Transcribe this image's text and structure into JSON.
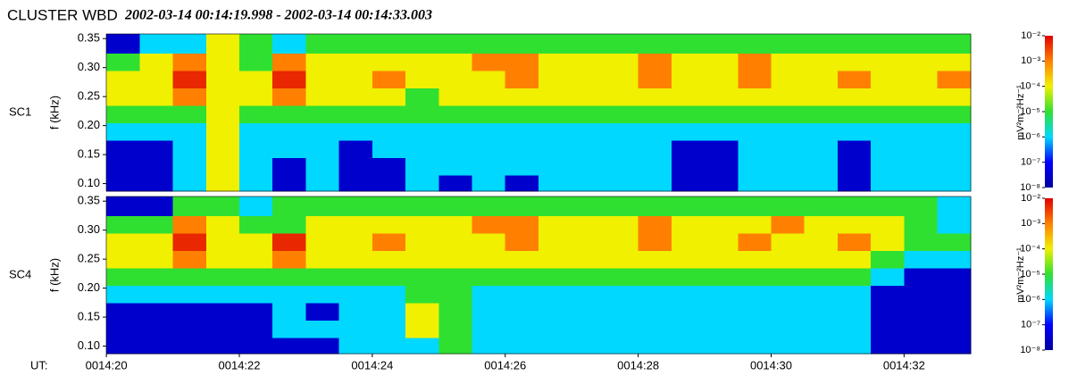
{
  "chart_data": [
    {
      "type": "heatmap",
      "title": "CLUSTER WBD",
      "subtitle": "2002-03-14 00:14:19.998 - 2002-03-14 00:14:33.003",
      "label": "SC1",
      "ylabel": "f (kHz)",
      "x": [
        20.25,
        20.75,
        21.25,
        21.75,
        22.25,
        22.75,
        23.25,
        23.75,
        24.25,
        24.75,
        25.25,
        25.75,
        26.25,
        26.75,
        27.25,
        27.75,
        28.25,
        28.75,
        29.25,
        29.75,
        30.25,
        30.75,
        31.25,
        31.75,
        32.25,
        32.75
      ],
      "y": [
        0.1,
        0.13,
        0.16,
        0.19,
        0.22,
        0.25,
        0.28,
        0.31,
        0.34
      ],
      "values": [
        [
          3e-08,
          3e-08,
          1e-06,
          0.0001,
          1e-06,
          3e-08,
          1e-06,
          3e-08,
          3e-08,
          1e-06,
          3e-08,
          1e-06,
          3e-08,
          1e-06,
          1e-06,
          1e-06,
          1e-06,
          3e-08,
          3e-08,
          1e-06,
          1e-06,
          1e-06,
          3e-08,
          1e-06,
          1e-06,
          1e-06
        ],
        [
          3e-08,
          3e-08,
          1e-06,
          0.0001,
          1e-06,
          3e-08,
          1e-06,
          3e-08,
          3e-08,
          1e-06,
          1e-06,
          1e-06,
          1e-06,
          1e-06,
          1e-06,
          1e-06,
          1e-06,
          3e-08,
          3e-08,
          1e-06,
          1e-06,
          1e-06,
          3e-08,
          1e-06,
          1e-06,
          1e-06
        ],
        [
          3e-08,
          3e-08,
          1e-06,
          0.0001,
          1e-06,
          1e-06,
          1e-06,
          3e-08,
          1e-06,
          1e-06,
          1e-06,
          1e-06,
          1e-06,
          1e-06,
          1e-06,
          1e-06,
          1e-06,
          3e-08,
          3e-08,
          1e-06,
          1e-06,
          1e-06,
          3e-08,
          1e-06,
          1e-06,
          1e-06
        ],
        [
          1e-06,
          1e-06,
          1e-06,
          0.0001,
          1e-06,
          1e-06,
          1e-06,
          1e-06,
          1e-06,
          1e-06,
          1e-06,
          1e-06,
          1e-06,
          1e-06,
          1e-06,
          1e-06,
          1e-06,
          1e-06,
          1e-06,
          1e-06,
          1e-06,
          1e-06,
          1e-06,
          1e-06,
          1e-06,
          1e-06
        ],
        [
          1e-05,
          1e-05,
          1e-05,
          0.0001,
          1e-05,
          1e-05,
          1e-05,
          1e-05,
          1e-05,
          1e-05,
          1e-05,
          1e-05,
          1e-05,
          1e-05,
          1e-05,
          1e-05,
          1e-05,
          1e-05,
          1e-05,
          1e-05,
          1e-05,
          1e-05,
          1e-05,
          1e-05,
          1e-05,
          1e-05
        ],
        [
          0.0001,
          0.0001,
          0.001,
          0.0001,
          0.0001,
          0.001,
          0.0001,
          0.0001,
          0.0001,
          1e-05,
          0.0001,
          0.0001,
          0.0001,
          0.0001,
          0.0001,
          0.0001,
          0.0001,
          0.0001,
          0.0001,
          0.0001,
          0.0001,
          0.0001,
          0.0001,
          0.0001,
          0.0001,
          0.0001
        ],
        [
          0.0001,
          0.0001,
          0.005,
          0.0001,
          0.0001,
          0.005,
          0.0001,
          0.0001,
          0.001,
          0.0001,
          0.0001,
          0.0001,
          0.001,
          0.0001,
          0.0001,
          0.0001,
          0.001,
          0.0001,
          0.0001,
          0.001,
          0.0001,
          0.0001,
          0.001,
          0.0001,
          0.0001,
          0.001
        ],
        [
          1e-05,
          0.0001,
          0.001,
          0.0001,
          1e-05,
          0.001,
          0.0001,
          0.0001,
          0.0001,
          0.0001,
          0.0001,
          0.001,
          0.001,
          0.0001,
          0.0001,
          0.0001,
          0.001,
          0.0001,
          0.0001,
          0.001,
          0.0001,
          0.0001,
          0.0001,
          0.0001,
          0.0001,
          0.0001
        ],
        [
          3e-08,
          1e-06,
          1e-06,
          0.0001,
          1e-05,
          1e-06,
          1e-05,
          1e-05,
          1e-05,
          1e-05,
          1e-05,
          1e-05,
          1e-05,
          1e-05,
          1e-05,
          1e-05,
          1e-05,
          1e-05,
          1e-05,
          1e-05,
          1e-05,
          1e-05,
          1e-05,
          1e-05,
          1e-05,
          1e-05
        ]
      ],
      "xlim": [
        19.998,
        33.003
      ],
      "ylim": [
        0.087,
        0.358
      ],
      "yticks": [
        {
          "value": 0.1,
          "label": "0.10"
        },
        0.15,
        {
          "value": 0.2,
          "label": "0.20"
        },
        0.25,
        {
          "value": 0.3,
          "label": "0.30"
        },
        0.35
      ],
      "zlim": [
        1e-08,
        0.01
      ],
      "zscale": "log",
      "zticks": [
        {
          "value": 0.01,
          "label": "10⁻²"
        },
        {
          "value": 0.001,
          "label": "10⁻³"
        },
        {
          "value": 0.0001,
          "label": "10⁻⁴"
        },
        {
          "value": 1e-05,
          "label": "10⁻⁵"
        },
        {
          "value": 1e-06,
          "label": "10⁻⁶"
        },
        {
          "value": 1e-07,
          "label": "10⁻⁷"
        },
        {
          "value": 1e-08,
          "label": "10⁻⁸"
        }
      ],
      "zlabel": "mV²m⁻²Hz⁻¹",
      "colormap": [
        "#0000a0",
        "#0000ff",
        "#00d8ff",
        "#30e030",
        "#f0f000",
        "#ff8000",
        "#e00000"
      ]
    },
    {
      "type": "heatmap",
      "label": "SC4",
      "ylabel": "f (kHz)",
      "xlabel": "UT:",
      "x": [
        20.25,
        20.75,
        21.25,
        21.75,
        22.25,
        22.75,
        23.25,
        23.75,
        24.25,
        24.75,
        25.25,
        25.75,
        26.25,
        26.75,
        27.25,
        27.75,
        28.25,
        28.75,
        29.25,
        29.75,
        30.25,
        30.75,
        31.25,
        31.75,
        32.25,
        32.75
      ],
      "y": [
        0.1,
        0.13,
        0.16,
        0.19,
        0.22,
        0.25,
        0.28,
        0.31,
        0.34
      ],
      "values": [
        [
          3e-08,
          3e-08,
          3e-08,
          3e-08,
          3e-08,
          3e-08,
          3e-08,
          1e-06,
          1e-06,
          1e-06,
          1e-05,
          1e-06,
          1e-06,
          1e-06,
          1e-06,
          1e-06,
          1e-06,
          1e-06,
          1e-06,
          1e-06,
          1e-06,
          1e-06,
          1e-06,
          3e-08,
          3e-08,
          3e-08
        ],
        [
          3e-08,
          3e-08,
          3e-08,
          3e-08,
          3e-08,
          1e-06,
          1e-06,
          1e-06,
          1e-06,
          0.0001,
          1e-05,
          1e-06,
          1e-06,
          1e-06,
          1e-06,
          1e-06,
          1e-06,
          1e-06,
          1e-06,
          1e-06,
          1e-06,
          1e-06,
          1e-06,
          3e-08,
          3e-08,
          3e-08
        ],
        [
          3e-08,
          3e-08,
          3e-08,
          3e-08,
          3e-08,
          1e-06,
          3e-08,
          1e-06,
          1e-06,
          0.0001,
          1e-05,
          1e-06,
          1e-06,
          1e-06,
          1e-06,
          1e-06,
          1e-06,
          1e-06,
          1e-06,
          1e-06,
          1e-06,
          1e-06,
          1e-06,
          3e-08,
          3e-08,
          3e-08
        ],
        [
          1e-06,
          1e-06,
          1e-06,
          1e-06,
          1e-06,
          1e-06,
          1e-06,
          1e-06,
          1e-06,
          1e-05,
          1e-05,
          1e-06,
          1e-06,
          1e-06,
          1e-06,
          1e-06,
          1e-06,
          1e-06,
          1e-06,
          1e-06,
          1e-06,
          1e-06,
          1e-06,
          3e-08,
          3e-08,
          3e-08
        ],
        [
          1e-05,
          1e-05,
          1e-05,
          1e-05,
          1e-05,
          1e-05,
          1e-05,
          1e-05,
          1e-05,
          1e-05,
          1e-05,
          1e-05,
          1e-05,
          1e-05,
          1e-05,
          1e-05,
          1e-05,
          1e-05,
          1e-05,
          1e-05,
          1e-05,
          1e-05,
          1e-05,
          1e-06,
          3e-08,
          3e-08
        ],
        [
          0.0001,
          0.0001,
          0.001,
          0.0001,
          0.0001,
          0.001,
          0.0001,
          0.0001,
          0.0001,
          0.0001,
          0.0001,
          0.0001,
          0.0001,
          0.0001,
          0.0001,
          0.0001,
          0.0001,
          0.0001,
          0.0001,
          0.0001,
          0.0001,
          0.0001,
          0.0001,
          1e-05,
          1e-06,
          1e-06
        ],
        [
          0.0001,
          0.0001,
          0.005,
          0.0001,
          0.0001,
          0.005,
          0.0001,
          0.0001,
          0.001,
          0.0001,
          0.0001,
          0.0001,
          0.001,
          0.0001,
          0.0001,
          0.0001,
          0.001,
          0.0001,
          0.0001,
          0.001,
          0.0001,
          0.0001,
          0.001,
          0.0001,
          1e-05,
          1e-05
        ],
        [
          1e-05,
          1e-05,
          0.001,
          0.0001,
          1e-05,
          1e-05,
          0.0001,
          0.0001,
          0.0001,
          0.0001,
          0.0001,
          0.001,
          0.001,
          0.0001,
          0.0001,
          0.0001,
          0.001,
          0.0001,
          0.0001,
          0.0001,
          0.001,
          0.0001,
          0.0001,
          0.0001,
          1e-05,
          1e-06
        ],
        [
          3e-08,
          3e-08,
          1e-05,
          1e-05,
          1e-06,
          1e-05,
          1e-05,
          1e-05,
          1e-05,
          1e-05,
          1e-05,
          1e-05,
          1e-05,
          1e-05,
          1e-05,
          1e-05,
          1e-05,
          1e-05,
          1e-05,
          1e-05,
          1e-05,
          1e-05,
          1e-05,
          1e-05,
          1e-05,
          1e-06
        ]
      ],
      "xlim": [
        19.998,
        33.003
      ],
      "ylim": [
        0.087,
        0.358
      ],
      "yticks": [
        {
          "value": 0.1,
          "label": "0.10"
        },
        0.15,
        {
          "value": 0.2,
          "label": "0.20"
        },
        0.25,
        {
          "value": 0.3,
          "label": "0.30"
        },
        0.35
      ],
      "xticks": [
        {
          "value": 20,
          "label": "0014:20"
        },
        {
          "value": 22,
          "label": "0014:22"
        },
        {
          "value": 24,
          "label": "0014:24"
        },
        {
          "value": 26,
          "label": "0014:26"
        },
        {
          "value": 28,
          "label": "0014:28"
        },
        {
          "value": 30,
          "label": "0014:30"
        },
        {
          "value": 32,
          "label": "0014:32"
        }
      ],
      "zlim": [
        1e-08,
        0.01
      ],
      "zscale": "log",
      "zticks": [
        {
          "value": 0.01,
          "label": "10⁻²"
        },
        {
          "value": 0.001,
          "label": "10⁻³"
        },
        {
          "value": 0.0001,
          "label": "10⁻⁴"
        },
        {
          "value": 1e-05,
          "label": "10⁻⁵"
        },
        {
          "value": 1e-06,
          "label": "10⁻⁶"
        },
        {
          "value": 1e-07,
          "label": "10⁻⁷"
        },
        {
          "value": 1e-08,
          "label": "10⁻⁸"
        }
      ],
      "zlabel": "mV²m⁻²Hz⁻¹",
      "colormap": [
        "#0000a0",
        "#0000ff",
        "#00d8ff",
        "#30e030",
        "#f0f000",
        "#ff8000",
        "#e00000"
      ]
    }
  ]
}
